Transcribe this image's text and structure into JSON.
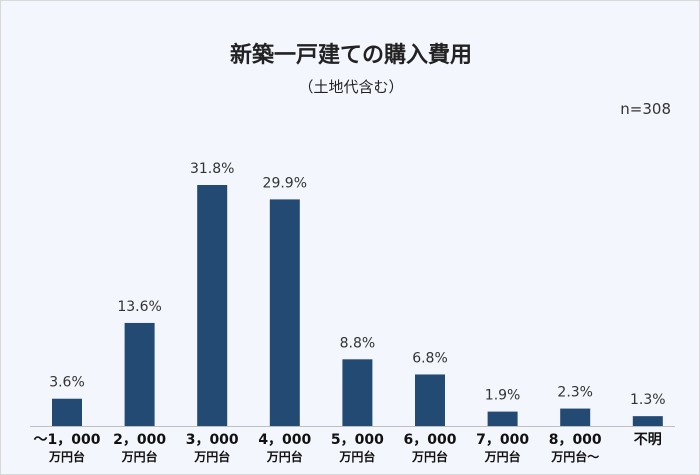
{
  "chart_data": {
    "type": "bar",
    "title": "新築一戸建ての購入費用",
    "subtitle": "（土地代含む）",
    "annotation": "n=308",
    "categories": [
      [
        "～1，000",
        "万円台"
      ],
      [
        "2，000",
        "万円台"
      ],
      [
        "3，000",
        "万円台"
      ],
      [
        "4，000",
        "万円台"
      ],
      [
        "5，000",
        "万円台"
      ],
      [
        "6，000",
        "万円台"
      ],
      [
        "7，000",
        "万円台"
      ],
      [
        "8，000",
        "万円台～"
      ],
      [
        "不明",
        ""
      ]
    ],
    "values": [
      3.6,
      13.6,
      31.8,
      29.9,
      8.8,
      6.8,
      1.9,
      2.3,
      1.3
    ],
    "value_labels": [
      "3.6%",
      "13.6%",
      "31.8%",
      "29.9%",
      "8.8%",
      "6.8%",
      "1.9%",
      "2.3%",
      "1.3%"
    ],
    "ylim": [
      0,
      31.8
    ],
    "grid": false,
    "legend": "none",
    "bar_color": "#234a73",
    "axis_color": "#bfbfbf"
  }
}
